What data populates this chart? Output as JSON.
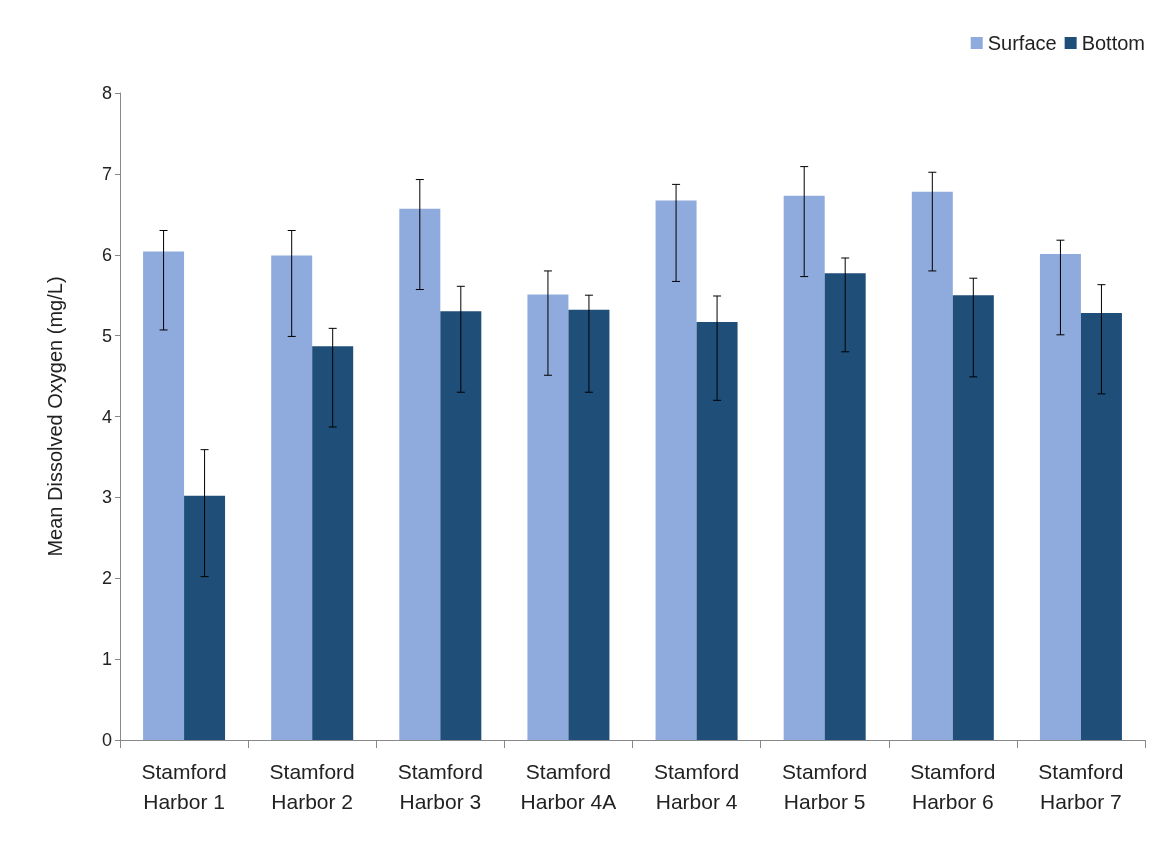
{
  "chart_data": {
    "type": "bar",
    "ylabel": "Mean Dissolved Oxygen (mg/L)",
    "categories": [
      "Stamford Harbor 1",
      "Stamford Harbor 2",
      "Stamford Harbor 3",
      "Stamford Harbor 4A",
      "Stamford Harbor 4",
      "Stamford Harbor 5",
      "Stamford Harbor 6",
      "Stamford Harbor 7"
    ],
    "series": [
      {
        "name": "Surface",
        "color": "#8faadc",
        "values": [
          6.04,
          5.99,
          6.57,
          5.51,
          6.67,
          6.73,
          6.78,
          6.01
        ],
        "errors": [
          [
            5.07,
            6.3
          ],
          [
            4.99,
            6.3
          ],
          [
            5.57,
            6.93
          ],
          [
            4.51,
            5.8
          ],
          [
            5.67,
            6.87
          ],
          [
            5.73,
            7.09
          ],
          [
            5.8,
            7.02
          ],
          [
            5.01,
            6.18
          ]
        ]
      },
      {
        "name": "Bottom",
        "color": "#1f4e79",
        "values": [
          3.02,
          4.87,
          5.3,
          5.32,
          5.17,
          5.77,
          5.5,
          5.28
        ],
        "errors": [
          [
            2.02,
            3.59
          ],
          [
            3.87,
            5.09
          ],
          [
            4.3,
            5.61
          ],
          [
            4.3,
            5.5
          ],
          [
            4.2,
            5.49
          ],
          [
            4.8,
            5.96
          ],
          [
            4.49,
            5.71
          ],
          [
            4.28,
            5.63
          ]
        ]
      }
    ],
    "ylim": [
      0,
      8
    ],
    "yticks": [
      0,
      1,
      2,
      3,
      4,
      5,
      6,
      7,
      8
    ],
    "grid": false,
    "legend": "top right"
  }
}
